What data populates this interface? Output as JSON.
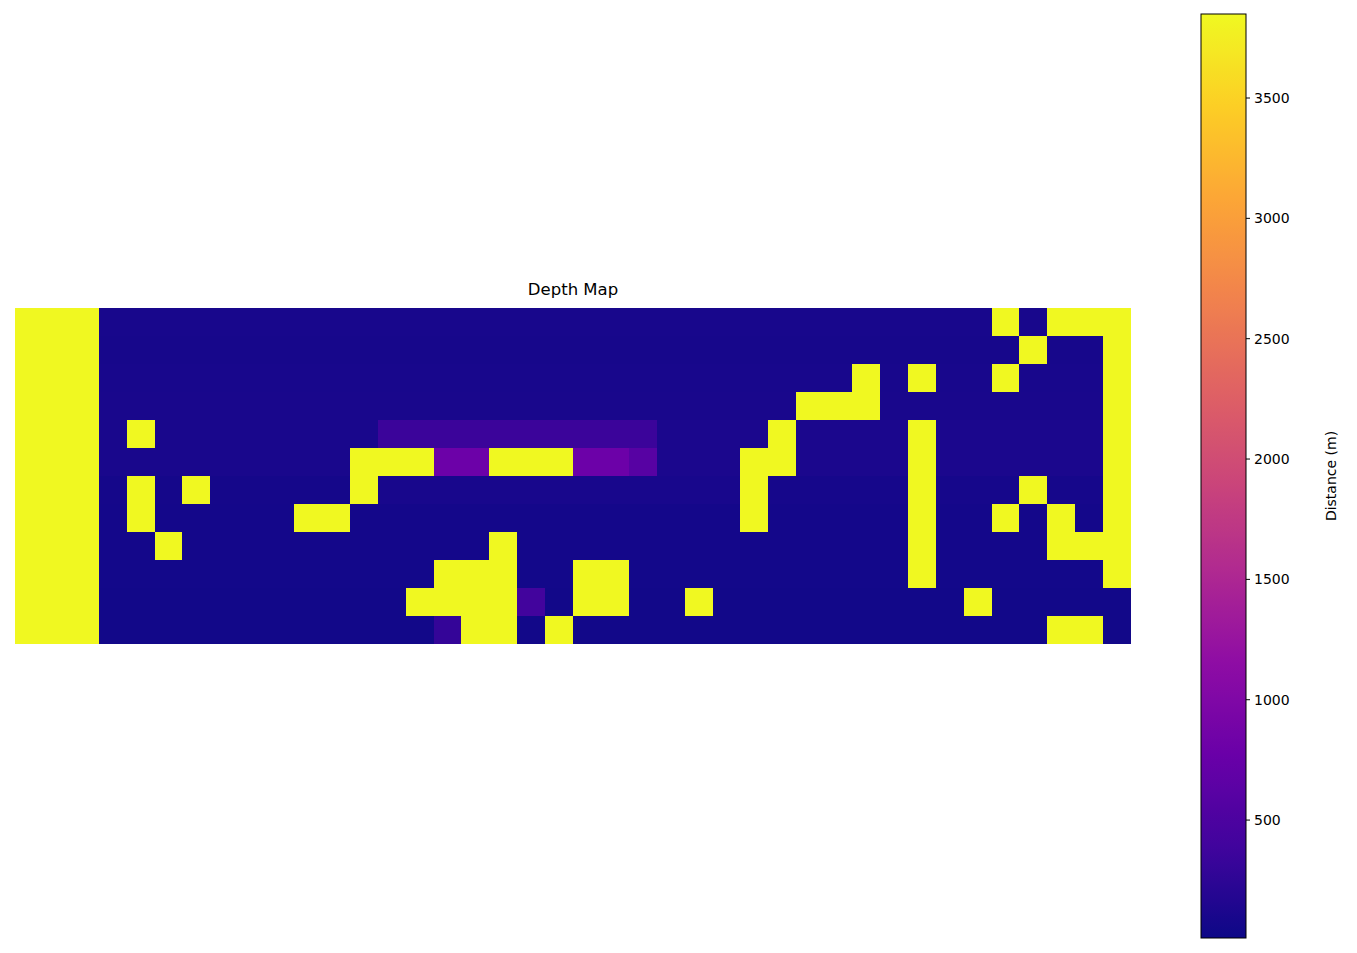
{
  "chart_data": {
    "type": "heatmap",
    "title": "Depth Map",
    "color": "plasma",
    "tick_labels": false,
    "colorbar_label": "Distance (m)",
    "colorbar_range": [
      10,
      3849
    ],
    "colorbar_ticks": [
      500,
      1000,
      1500,
      2000,
      2500,
      3000,
      3500
    ],
    "cells": [
      [
        3840,
        3840,
        3840,
        90,
        90,
        90,
        90,
        90,
        90,
        90,
        90,
        90,
        90,
        90,
        90,
        90,
        90,
        90,
        90,
        90,
        90,
        90,
        90,
        90,
        90,
        90,
        90,
        90,
        90,
        90,
        90,
        90,
        90,
        90,
        90,
        3840,
        90,
        3840,
        3840,
        3840
      ],
      [
        3840,
        3840,
        3840,
        85,
        85,
        85,
        85,
        85,
        85,
        85,
        85,
        85,
        85,
        85,
        85,
        85,
        85,
        85,
        85,
        85,
        85,
        85,
        85,
        85,
        85,
        85,
        85,
        85,
        85,
        85,
        85,
        85,
        85,
        85,
        85,
        85,
        3840,
        85,
        85,
        3840
      ],
      [
        3840,
        3840,
        3840,
        90,
        90,
        90,
        90,
        90,
        90,
        90,
        90,
        90,
        90,
        90,
        90,
        90,
        90,
        90,
        90,
        90,
        90,
        90,
        90,
        90,
        90,
        90,
        90,
        90,
        90,
        90,
        3840,
        90,
        3840,
        90,
        90,
        3840,
        90,
        90,
        90,
        3840
      ],
      [
        3840,
        3840,
        3840,
        100,
        100,
        100,
        100,
        100,
        100,
        100,
        100,
        100,
        100,
        100,
        100,
        100,
        100,
        100,
        100,
        100,
        100,
        100,
        100,
        100,
        100,
        100,
        100,
        100,
        3840,
        3840,
        3840,
        100,
        100,
        100,
        100,
        100,
        100,
        100,
        100,
        3840
      ],
      [
        3840,
        3840,
        3840,
        100,
        3840,
        100,
        100,
        100,
        100,
        100,
        100,
        100,
        100,
        350,
        350,
        350,
        350,
        350,
        350,
        350,
        350,
        350,
        350,
        110,
        110,
        110,
        110,
        3840,
        110,
        110,
        110,
        110,
        3840,
        110,
        110,
        110,
        110,
        110,
        110,
        3840
      ],
      [
        3840,
        3840,
        3840,
        100,
        100,
        100,
        100,
        100,
        100,
        100,
        100,
        100,
        3840,
        3840,
        3840,
        800,
        800,
        3840,
        3840,
        3840,
        800,
        800,
        600,
        110,
        110,
        110,
        3840,
        3840,
        110,
        110,
        110,
        110,
        3840,
        110,
        110,
        110,
        110,
        110,
        110,
        3840
      ],
      [
        3840,
        3840,
        3840,
        70,
        3840,
        70,
        3840,
        70,
        70,
        70,
        70,
        70,
        3840,
        90,
        90,
        90,
        90,
        90,
        90,
        90,
        90,
        90,
        90,
        90,
        90,
        90,
        3840,
        80,
        80,
        80,
        80,
        80,
        3840,
        80,
        80,
        80,
        3840,
        80,
        80,
        3840
      ],
      [
        3840,
        3840,
        3840,
        60,
        3840,
        60,
        60,
        60,
        60,
        60,
        3840,
        3840,
        60,
        60,
        60,
        60,
        60,
        60,
        60,
        60,
        60,
        60,
        60,
        60,
        60,
        60,
        3840,
        60,
        60,
        60,
        60,
        60,
        3840,
        60,
        60,
        3840,
        60,
        3840,
        60,
        3840
      ],
      [
        3840,
        3840,
        3840,
        60,
        60,
        3840,
        60,
        60,
        60,
        60,
        60,
        60,
        60,
        60,
        60,
        60,
        60,
        3840,
        60,
        60,
        60,
        60,
        60,
        60,
        60,
        60,
        60,
        60,
        60,
        60,
        60,
        60,
        3840,
        60,
        60,
        60,
        60,
        3840,
        3840,
        3840
      ],
      [
        3840,
        3840,
        3840,
        55,
        55,
        55,
        55,
        55,
        55,
        55,
        55,
        55,
        55,
        55,
        55,
        3840,
        3840,
        3840,
        55,
        55,
        3840,
        3840,
        55,
        55,
        55,
        55,
        55,
        55,
        55,
        55,
        55,
        55,
        3840,
        55,
        55,
        55,
        55,
        55,
        55,
        3840
      ],
      [
        3840,
        3840,
        3840,
        50,
        50,
        50,
        50,
        50,
        50,
        50,
        50,
        50,
        50,
        50,
        3840,
        3840,
        3840,
        3840,
        400,
        50,
        3840,
        3840,
        50,
        50,
        3840,
        50,
        50,
        50,
        50,
        50,
        50,
        50,
        50,
        50,
        3840,
        50,
        50,
        50,
        50,
        50
      ],
      [
        3840,
        3840,
        3840,
        45,
        45,
        45,
        45,
        45,
        45,
        45,
        45,
        45,
        45,
        45,
        45,
        300,
        3840,
        3840,
        45,
        3840,
        45,
        45,
        45,
        45,
        45,
        45,
        45,
        45,
        45,
        45,
        45,
        45,
        45,
        45,
        45,
        45,
        45,
        3840,
        3840,
        45
      ]
    ]
  }
}
